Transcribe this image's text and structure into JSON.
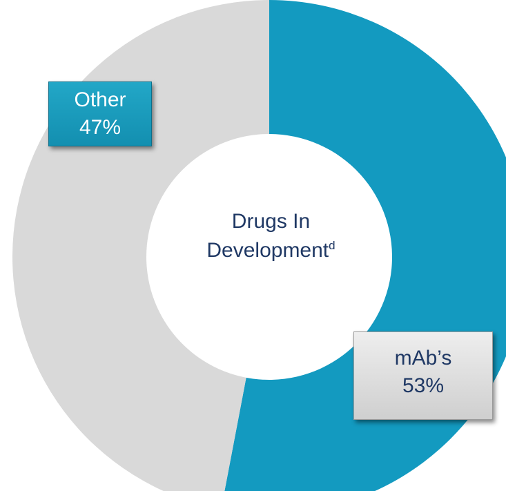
{
  "chart_data": {
    "type": "pie",
    "style": "donut",
    "center_label": {
      "text": "Drugs In",
      "text2": "Development",
      "superscript": "d"
    },
    "slices": [
      {
        "label": "mAb’s",
        "value": 53,
        "value_text": "53%",
        "color": "#139ac0"
      },
      {
        "label": "Other",
        "value": 47,
        "value_text": "47%",
        "color": "#d9d9d9"
      }
    ],
    "start": "top",
    "direction": "clockwise"
  }
}
